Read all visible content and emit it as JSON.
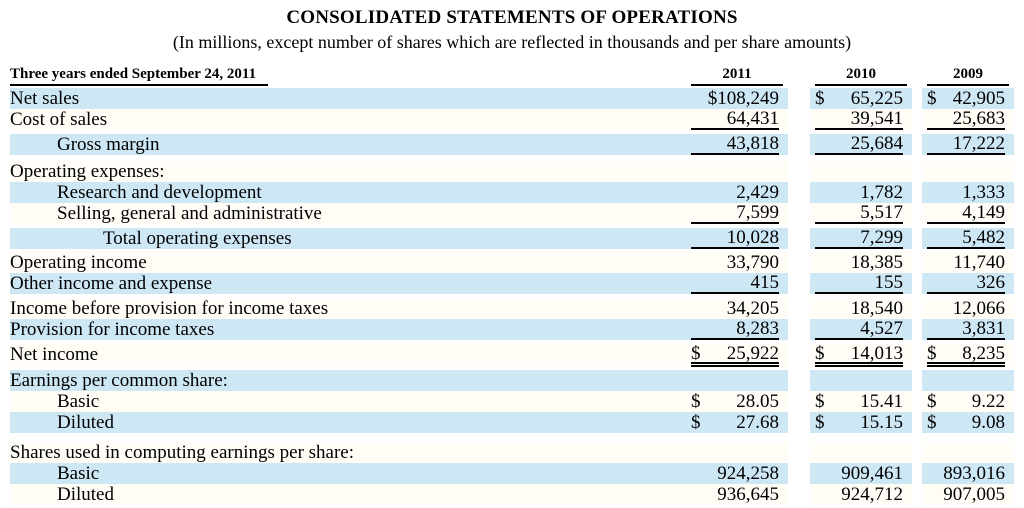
{
  "title": "CONSOLIDATED STATEMENTS OF OPERATIONS",
  "subtitle": "(In millions, except number of shares which are reflected in thousands and per share amounts)",
  "colors": {
    "row_shade": "#cde7f5",
    "row_plain": "#fffdf6",
    "text": "#000000",
    "rule": "#000000"
  },
  "table": {
    "caption": "Three years ended September 24, 2011",
    "years": [
      "2011",
      "2010",
      "2009"
    ],
    "rows": [
      {
        "label": "Net sales",
        "indent": 0,
        "shaded": true,
        "underline": "none",
        "values": [
          "$108,249",
          "$ 65,225",
          "$ 42,905"
        ]
      },
      {
        "label": "Cost of sales",
        "indent": 0,
        "shaded": false,
        "underline": "single",
        "values": [
          "64,431",
          "39,541",
          "25,683"
        ]
      },
      {
        "gap": 4
      },
      {
        "label": "Gross margin",
        "indent": 1,
        "shaded": true,
        "underline": "single",
        "values": [
          "43,818",
          "25,684",
          "17,222"
        ]
      },
      {
        "gap": 6
      },
      {
        "label": "Operating expenses:",
        "indent": 0,
        "shaded": false,
        "underline": "none",
        "values": null
      },
      {
        "label": "Research and development",
        "indent": 1,
        "shaded": true,
        "underline": "none",
        "values": [
          "2,429",
          "1,782",
          "1,333"
        ]
      },
      {
        "label": "Selling, general and administrative",
        "indent": 1,
        "shaded": false,
        "underline": "single",
        "values": [
          "7,599",
          "5,517",
          "4,149"
        ]
      },
      {
        "gap": 4
      },
      {
        "label": "Total operating expenses",
        "indent": 2,
        "shaded": true,
        "underline": "single",
        "values": [
          "10,028",
          "7,299",
          "5,482"
        ]
      },
      {
        "gap": 3
      },
      {
        "label": "Operating income",
        "indent": 0,
        "shaded": false,
        "underline": "none",
        "values": [
          "33,790",
          "18,385",
          "11,740"
        ]
      },
      {
        "label": "Other income and expense",
        "indent": 0,
        "shaded": true,
        "underline": "single",
        "values": [
          "415",
          "155",
          "326"
        ]
      },
      {
        "gap": 4
      },
      {
        "label": "Income before provision for income taxes",
        "indent": 0,
        "shaded": false,
        "underline": "none",
        "values": [
          "34,205",
          "18,540",
          "12,066"
        ]
      },
      {
        "label": "Provision for income taxes",
        "indent": 0,
        "shaded": true,
        "underline": "single",
        "values": [
          "8,283",
          "4,527",
          "3,831"
        ]
      },
      {
        "gap": 4
      },
      {
        "label": "Net income",
        "indent": 0,
        "shaded": false,
        "underline": "double",
        "values": [
          "$ 25,922",
          "$ 14,013",
          "$ 8,235"
        ]
      },
      {
        "gap": 3
      },
      {
        "label": "Earnings per common share:",
        "indent": 0,
        "shaded": true,
        "underline": "none",
        "values": null
      },
      {
        "label": "Basic",
        "indent": 1,
        "shaded": false,
        "underline": "none",
        "values": [
          "$ 28.05",
          "$ 15.41",
          "$ 9.22"
        ]
      },
      {
        "label": "Diluted",
        "indent": 1,
        "shaded": true,
        "underline": "none",
        "values": [
          "$ 27.68",
          "$ 15.15",
          "$ 9.08"
        ]
      },
      {
        "gap": 9
      },
      {
        "label": "Shares used in computing earnings per share:",
        "indent": 0,
        "shaded": false,
        "underline": "none",
        "values": null
      },
      {
        "label": "Basic",
        "indent": 1,
        "shaded": true,
        "underline": "none",
        "values": [
          "924,258",
          "909,461",
          "893,016"
        ]
      },
      {
        "label": "Diluted",
        "indent": 1,
        "shaded": false,
        "underline": "none",
        "values": [
          "936,645",
          "924,712",
          "907,005"
        ]
      }
    ]
  }
}
